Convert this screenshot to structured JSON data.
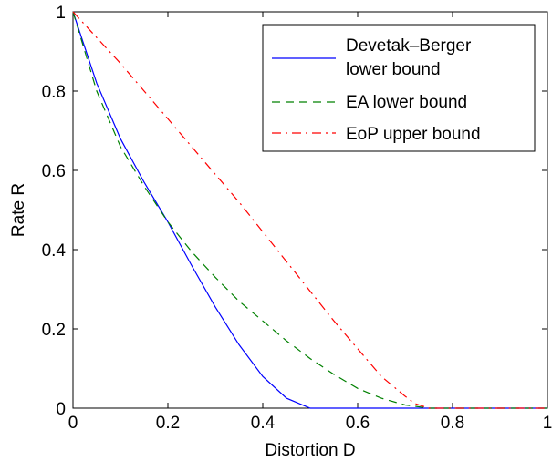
{
  "chart_data": {
    "type": "line",
    "title": "",
    "xlabel": "Distortion D",
    "ylabel": "Rate R",
    "xlim": [
      0,
      1
    ],
    "ylim": [
      0,
      1
    ],
    "xticks": [
      0,
      0.2,
      0.4,
      0.6,
      0.8,
      1
    ],
    "yticks": [
      0,
      0.2,
      0.4,
      0.6,
      0.8,
      1
    ],
    "xtick_labels": [
      "0",
      "0.2",
      "0.4",
      "0.6",
      "0.8",
      "1"
    ],
    "ytick_labels": [
      "0",
      "0.2",
      "0.4",
      "0.6",
      "0.8",
      "1"
    ],
    "grid": false,
    "legend_position": "top-right",
    "series": [
      {
        "name": "Devetak–Berger lower bound",
        "legend_lines": [
          "Devetak–Berger",
          "lower bound"
        ],
        "color": "#0000ff",
        "style": "solid",
        "x": [
          0,
          0.05,
          0.1,
          0.15,
          0.2,
          0.25,
          0.3,
          0.35,
          0.4,
          0.45,
          0.5,
          0.6,
          0.7,
          0.8,
          0.9,
          1.0
        ],
        "y": [
          1.0,
          0.82,
          0.68,
          0.57,
          0.47,
          0.36,
          0.255,
          0.16,
          0.08,
          0.025,
          0.0,
          0.0,
          0.0,
          0.0,
          0.0,
          0.0
        ]
      },
      {
        "name": "EA lower bound",
        "legend_lines": [
          "EA lower bound"
        ],
        "color": "#008000",
        "style": "dashed",
        "x": [
          0,
          0.05,
          0.1,
          0.15,
          0.2,
          0.25,
          0.3,
          0.35,
          0.4,
          0.45,
          0.5,
          0.55,
          0.6,
          0.65,
          0.7,
          0.75,
          0.8,
          0.9,
          1.0
        ],
        "y": [
          1.0,
          0.8,
          0.66,
          0.56,
          0.47,
          0.395,
          0.33,
          0.27,
          0.22,
          0.17,
          0.125,
          0.085,
          0.05,
          0.025,
          0.008,
          0.0,
          0.0,
          0.0,
          0.0
        ]
      },
      {
        "name": "EoP upper bound",
        "legend_lines": [
          "EoP upper bound"
        ],
        "color": "#ff0000",
        "style": "dashdot",
        "x": [
          0,
          0.05,
          0.1,
          0.15,
          0.2,
          0.25,
          0.3,
          0.35,
          0.4,
          0.45,
          0.5,
          0.55,
          0.6,
          0.65,
          0.7,
          0.72,
          0.75,
          0.8,
          0.9,
          1.0
        ],
        "y": [
          1.0,
          0.935,
          0.87,
          0.8,
          0.73,
          0.66,
          0.59,
          0.52,
          0.445,
          0.37,
          0.295,
          0.22,
          0.15,
          0.08,
          0.03,
          0.012,
          0.0,
          0.0,
          0.0,
          0.0
        ]
      }
    ]
  }
}
